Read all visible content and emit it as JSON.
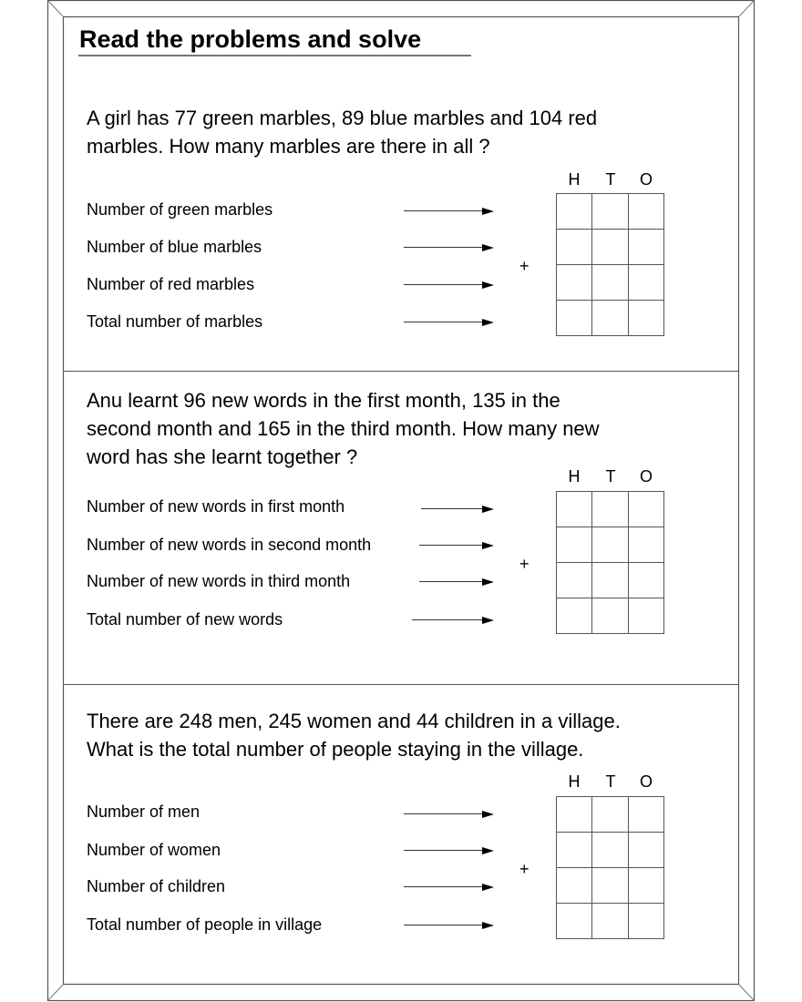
{
  "title": "Read the problems and solve",
  "columns": {
    "h": "H",
    "t": "T",
    "o": "O"
  },
  "operator": "+",
  "problems": [
    {
      "question_lines": [
        "A girl has 77 green marbles, 89 blue marbles and 104 red",
        "marbles. How many marbles are there in all ?"
      ],
      "labels": [
        "Number of green marbles",
        "Number of blue marbles",
        "Number of red marbles",
        "Total number of marbles"
      ]
    },
    {
      "question_lines": [
        "Anu learnt 96 new words in the first month, 135 in the",
        "second month and 165 in the third month. How many new",
        "word has she learnt together ?"
      ],
      "labels": [
        "Number of new words in first month",
        "Number of new words in second month",
        "Number of new words in third month",
        "Total number of new words"
      ]
    },
    {
      "question_lines": [
        "There are 248 men, 245 women and 44 children in a village.",
        "What is the total number of people staying in the village."
      ],
      "labels": [
        "Number of men",
        "Number of women",
        "Number of children",
        "Total number of people in village"
      ]
    }
  ]
}
